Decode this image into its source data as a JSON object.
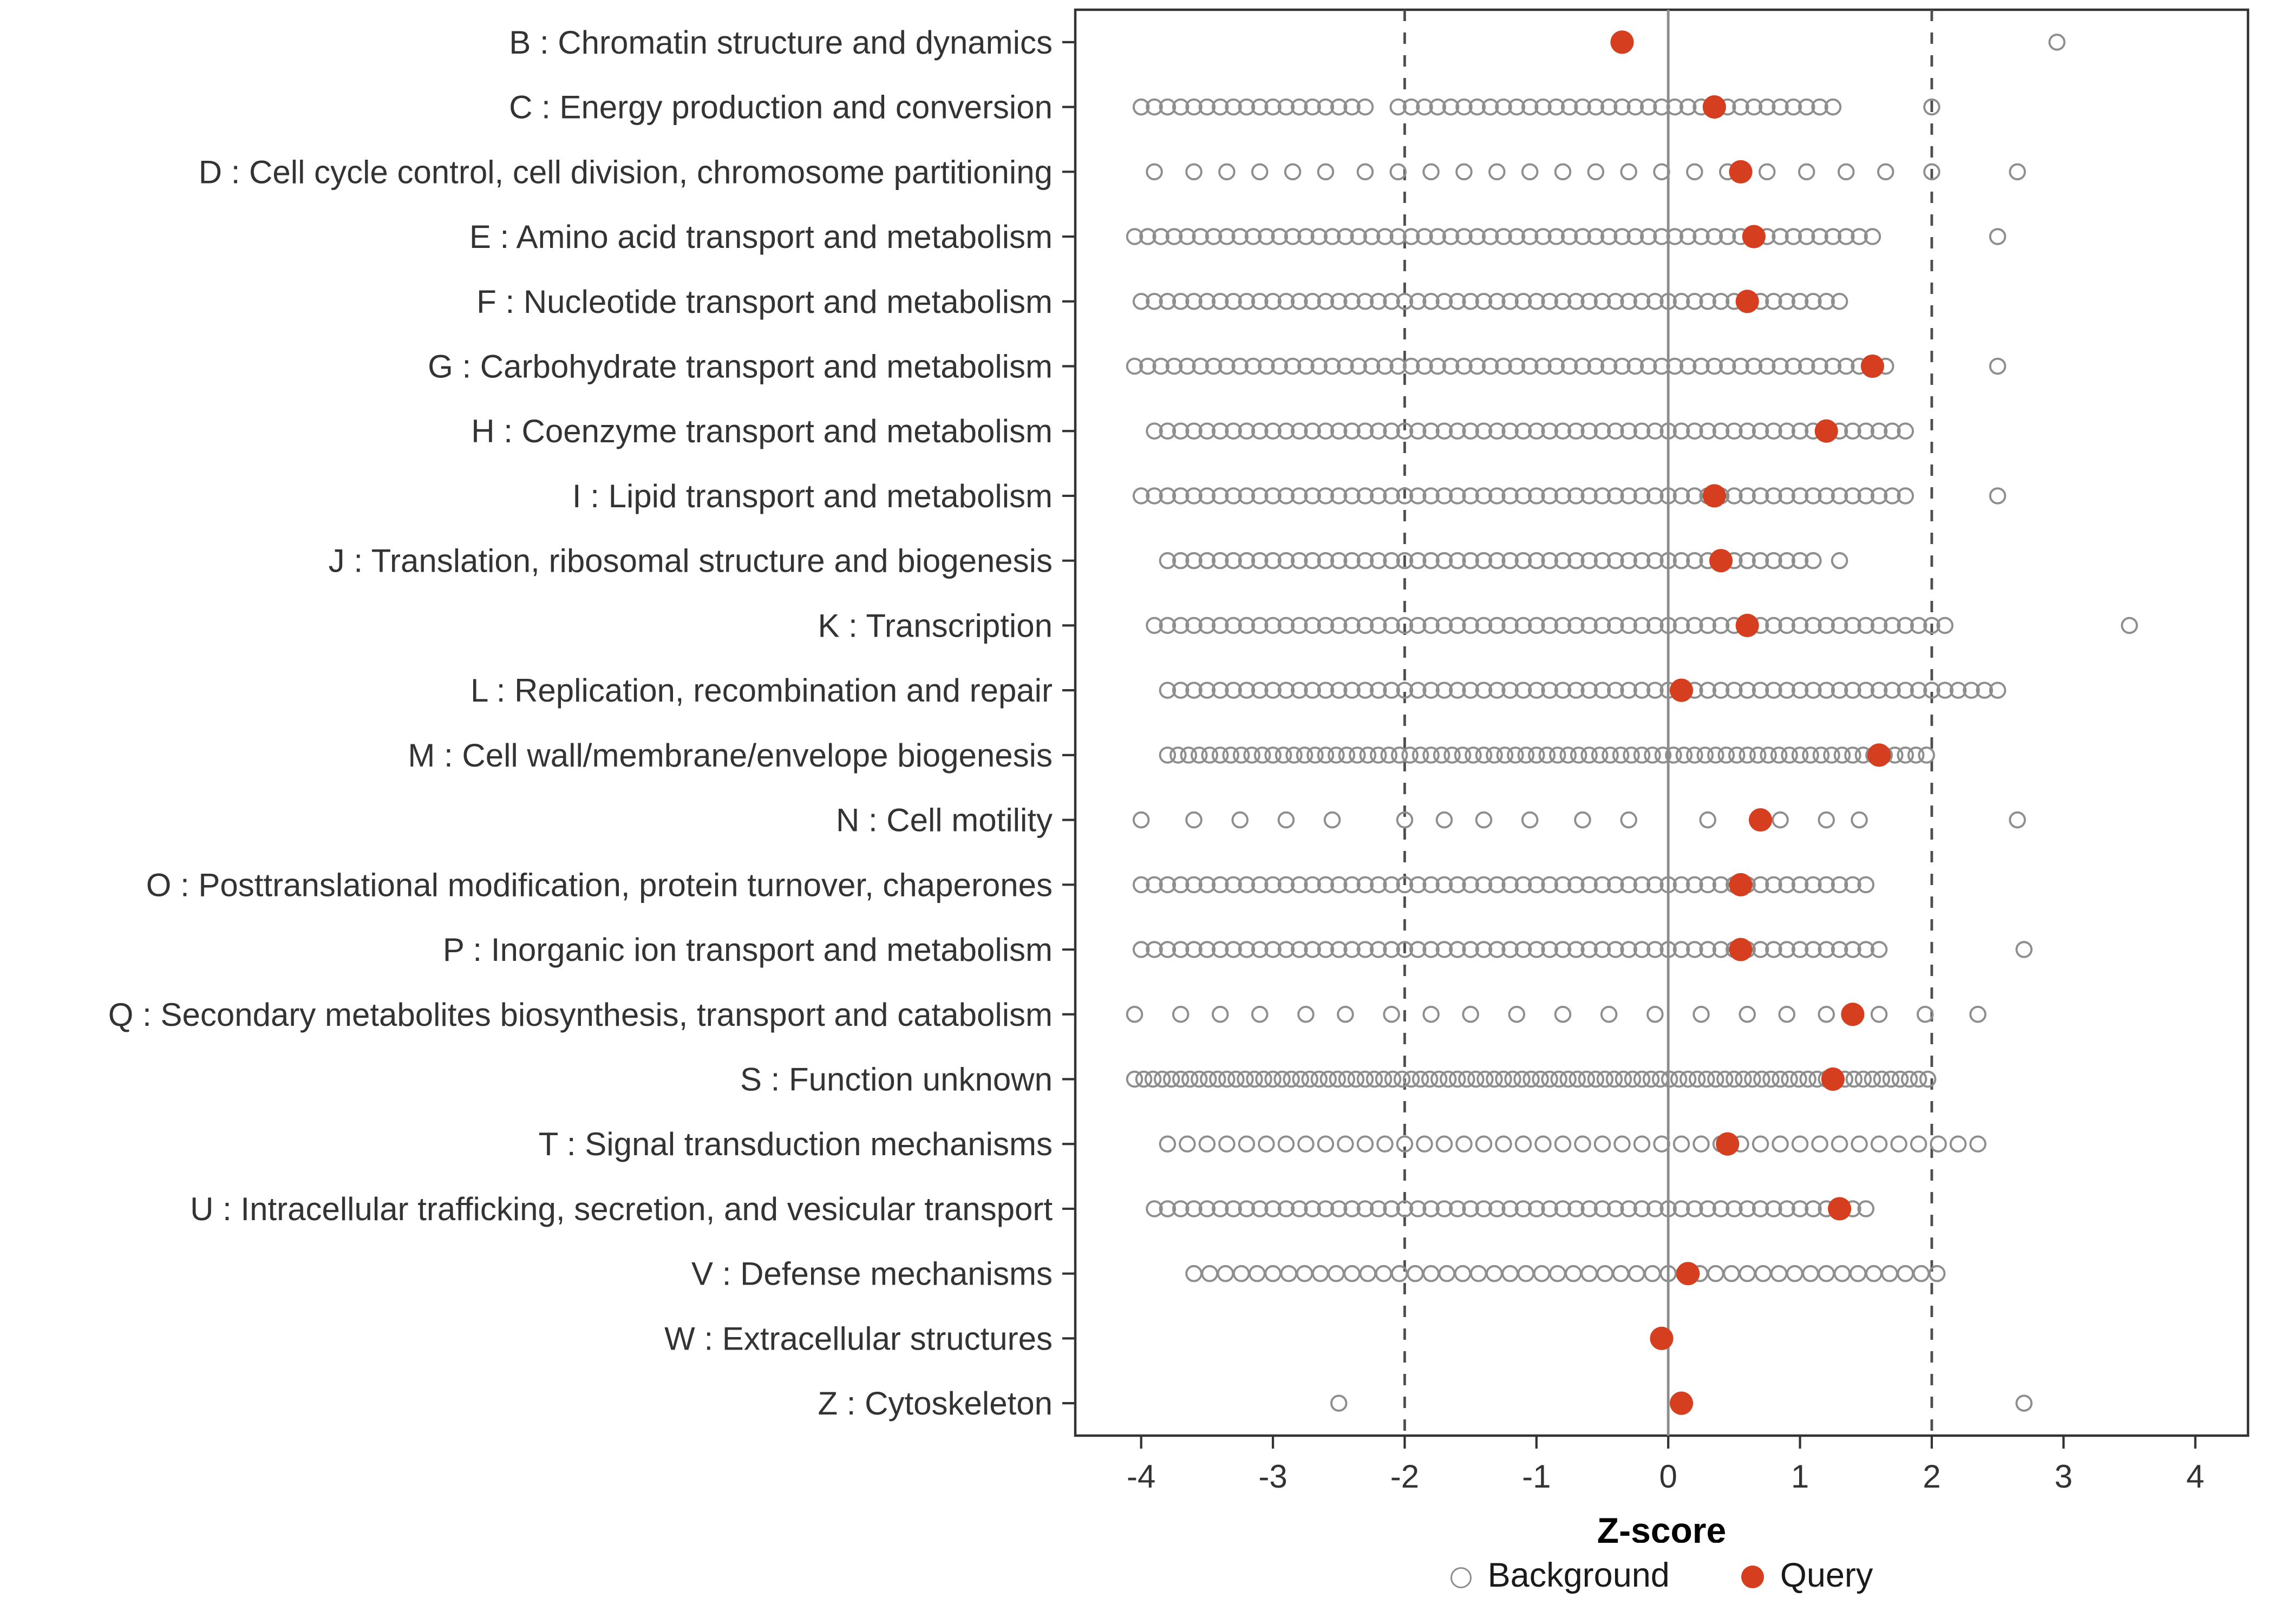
{
  "page": {
    "background": "#FFFFFF"
  },
  "colors": {
    "query": "#D53E1E",
    "background_stroke": "#8E8E8E",
    "axis_text": "#333333",
    "panel_border": "#333333",
    "zero_line": "#8C8C8C",
    "dashed_line": "#4D4D4D",
    "axis_title": "#000000"
  },
  "chart_data": {
    "type": "scatter",
    "title": "",
    "xlabel": "Z-score",
    "ylabel": "",
    "xlim": [
      -4.5,
      4.4
    ],
    "x_ticks": [
      -4,
      -3,
      -2,
      -1,
      0,
      1,
      2,
      3,
      4
    ],
    "grid": "off",
    "legend_position": "bottom",
    "reference_lines": {
      "solid": [
        0
      ],
      "dashed": [
        -2,
        2
      ]
    },
    "legend": [
      {
        "name": "Background",
        "marker": "open-circle"
      },
      {
        "name": "Query",
        "marker": "filled-circle"
      }
    ],
    "categories": [
      {
        "label": "B : Chromatin structure and dynamics",
        "query": -0.35,
        "background": {
          "points": [
            2.95
          ],
          "ranges": []
        }
      },
      {
        "label": "C : Energy production and conversion",
        "query": 0.35,
        "background": {
          "points": [
            2.0
          ],
          "ranges": [
            {
              "from": -4.0,
              "to": -2.3,
              "step": 0.1
            },
            {
              "from": -2.05,
              "to": 1.25,
              "step": 0.1
            }
          ]
        }
      },
      {
        "label": "D : Cell cycle control, cell division, chromosome partitioning",
        "query": 0.55,
        "background": {
          "points": [
            -3.9,
            -3.6,
            -3.35,
            -3.1,
            -2.85,
            -2.6,
            -2.3,
            -2.05,
            -1.8,
            -1.55,
            -1.3,
            -1.05,
            -0.8,
            -0.55,
            -0.3,
            -0.05,
            0.2,
            0.45,
            0.75,
            1.05,
            1.35,
            1.65,
            2.0,
            2.65
          ],
          "ranges": []
        }
      },
      {
        "label": "E : Amino acid transport and metabolism",
        "query": 0.65,
        "background": {
          "points": [
            2.5
          ],
          "ranges": [
            {
              "from": -4.05,
              "to": 1.55,
              "step": 0.1
            }
          ]
        }
      },
      {
        "label": "F : Nucleotide transport and metabolism",
        "query": 0.6,
        "background": {
          "points": [],
          "ranges": [
            {
              "from": -4.0,
              "to": 1.3,
              "step": 0.1
            }
          ]
        }
      },
      {
        "label": "G : Carbohydrate transport and metabolism",
        "query": 1.55,
        "background": {
          "points": [
            2.5
          ],
          "ranges": [
            {
              "from": -4.05,
              "to": 1.65,
              "step": 0.1
            }
          ]
        }
      },
      {
        "label": "H : Coenzyme transport and metabolism",
        "query": 1.2,
        "background": {
          "points": [],
          "ranges": [
            {
              "from": -3.9,
              "to": 1.8,
              "step": 0.1
            }
          ]
        }
      },
      {
        "label": "I : Lipid transport and metabolism",
        "query": 0.35,
        "background": {
          "points": [
            2.5
          ],
          "ranges": [
            {
              "from": -4.0,
              "to": 1.8,
              "step": 0.1
            }
          ]
        }
      },
      {
        "label": "J : Translation, ribosomal structure and biogenesis",
        "query": 0.4,
        "background": {
          "points": [
            1.3
          ],
          "ranges": [
            {
              "from": -3.8,
              "to": 1.1,
              "step": 0.1
            }
          ]
        }
      },
      {
        "label": "K : Transcription",
        "query": 0.6,
        "background": {
          "points": [
            3.5
          ],
          "ranges": [
            {
              "from": -3.9,
              "to": 2.1,
              "step": 0.1
            }
          ]
        }
      },
      {
        "label": "L : Replication, recombination and repair",
        "query": 0.1,
        "background": {
          "points": [],
          "ranges": [
            {
              "from": -3.8,
              "to": 2.5,
              "step": 0.1
            }
          ]
        }
      },
      {
        "label": "M : Cell wall/membrane/envelope biogenesis",
        "query": 1.6,
        "background": {
          "points": [],
          "ranges": [
            {
              "from": -3.8,
              "to": 1.96,
              "step": 0.08
            }
          ]
        }
      },
      {
        "label": "N : Cell motility",
        "query": 0.7,
        "background": {
          "points": [
            -4.0,
            -3.6,
            -3.25,
            -2.9,
            -2.55,
            -2.0,
            -1.7,
            -1.4,
            -1.05,
            -0.65,
            -0.3,
            0.3,
            0.85,
            1.2,
            1.45,
            2.65
          ],
          "ranges": []
        }
      },
      {
        "label": "O : Posttranslational modification, protein turnover, chaperones",
        "query": 0.55,
        "background": {
          "points": [],
          "ranges": [
            {
              "from": -4.0,
              "to": 1.5,
              "step": 0.1
            }
          ]
        }
      },
      {
        "label": "P : Inorganic ion transport and metabolism",
        "query": 0.55,
        "background": {
          "points": [
            2.7
          ],
          "ranges": [
            {
              "from": -4.0,
              "to": 1.6,
              "step": 0.1
            }
          ]
        }
      },
      {
        "label": "Q : Secondary metabolites biosynthesis, transport and catabolism",
        "query": 1.4,
        "background": {
          "points": [
            -4.05,
            -3.7,
            -3.4,
            -3.1,
            -2.75,
            -2.45,
            -2.1,
            -1.8,
            -1.5,
            -1.15,
            -0.8,
            -0.45,
            -0.1,
            0.25,
            0.6,
            0.9,
            1.2,
            1.6,
            1.95,
            2.35
          ],
          "ranges": []
        }
      },
      {
        "label": "S : Function unknown",
        "query": 1.25,
        "background": {
          "points": [],
          "ranges": [
            {
              "from": -4.05,
              "to": 1.99,
              "step": 0.07
            }
          ]
        }
      },
      {
        "label": "T : Signal transduction mechanisms",
        "query": 0.45,
        "background": {
          "points": [],
          "ranges": [
            {
              "from": -3.8,
              "to": 2.4,
              "step": 0.15
            }
          ]
        }
      },
      {
        "label": "U : Intracellular trafficking, secretion, and vesicular transport",
        "query": 1.3,
        "background": {
          "points": [],
          "ranges": [
            {
              "from": -3.9,
              "to": 1.5,
              "step": 0.1
            }
          ]
        }
      },
      {
        "label": "V : Defense mechanisms",
        "query": 0.15,
        "background": {
          "points": [],
          "ranges": [
            {
              "from": -3.6,
              "to": 2.0,
              "step": 0.12
            }
          ]
        }
      },
      {
        "label": "W : Extracellular structures",
        "query": -0.05,
        "background": {
          "points": [],
          "ranges": []
        }
      },
      {
        "label": "Z : Cytoskeleton",
        "query": 0.1,
        "background": {
          "points": [
            -2.5,
            2.7
          ],
          "ranges": []
        }
      }
    ]
  }
}
